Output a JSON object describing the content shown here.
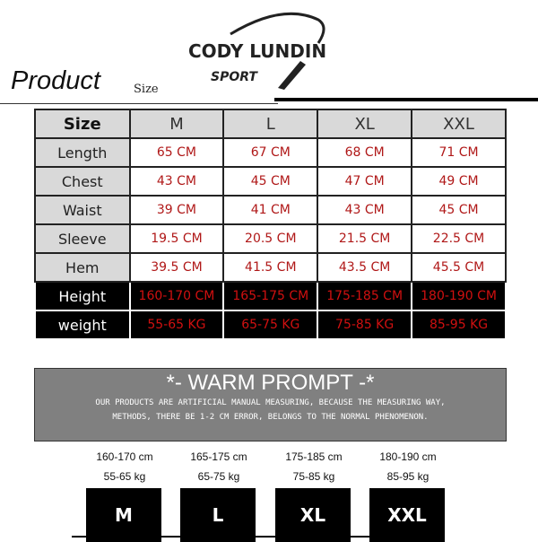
{
  "logo": {
    "brand": "CODY LUNDIN",
    "sub": "SPORT"
  },
  "title": "Product",
  "subtitle": "Size",
  "table": {
    "headers": [
      "Size",
      "M",
      "L",
      "XL",
      "XXL"
    ],
    "rows": [
      {
        "label": "Length",
        "values": [
          "65 CM",
          "67 CM",
          "68 CM",
          "71 CM"
        ]
      },
      {
        "label": "Chest",
        "values": [
          "43 CM",
          "45 CM",
          "47 CM",
          "49 CM"
        ]
      },
      {
        "label": "Waist",
        "values": [
          "39 CM",
          "41 CM",
          "43 CM",
          "45 CM"
        ]
      },
      {
        "label": "Sleeve",
        "values": [
          "19.5 CM",
          "20.5 CM",
          "21.5 CM",
          "22.5 CM"
        ]
      },
      {
        "label": "Hem",
        "values": [
          "39.5 CM",
          "41.5 CM",
          "43.5 CM",
          "45.5 CM"
        ]
      },
      {
        "label": "Height",
        "values": [
          "160-170 CM",
          "165-175 CM",
          "175-185 CM",
          "180-190 CM"
        ]
      },
      {
        "label": "weight",
        "values": [
          "55-65 KG",
          "65-75 KG",
          "75-85 KG",
          "85-95 KG"
        ]
      }
    ]
  },
  "warm": {
    "title": "*- WARM PROMPT -*",
    "line1": "OUR PRODUCTS ARE ARTIFICIAL MANUAL MEASURING, BECAUSE THE MEASURING WAY,",
    "line2": "METHODS, THERE BE 1-2 CM ERROR, BELONGS TO THE NORMAL PHENOMENON."
  },
  "guide": [
    {
      "height": "160-170 cm",
      "weight": "55-65 kg",
      "size": "M"
    },
    {
      "height": "165-175 cm",
      "weight": "65-75 kg",
      "size": "L"
    },
    {
      "height": "175-185 cm",
      "weight": "75-85 kg",
      "size": "XL"
    },
    {
      "height": "180-190 cm",
      "weight": "85-95 kg",
      "size": "XXL"
    }
  ]
}
